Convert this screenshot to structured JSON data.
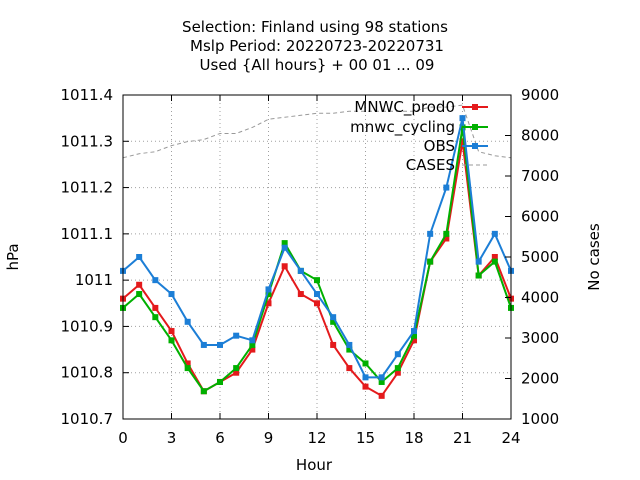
{
  "chart_data": {
    "type": "line",
    "title_lines": [
      "Selection: Finland using    98 stations",
      "Mslp   Period: 20220723-20220731",
      "Used {All hours} + 00 01 ... 09"
    ],
    "xlabel": "Hour",
    "ylabel": "hPa",
    "y2label": "No cases",
    "xlim": [
      0,
      24
    ],
    "ylim": [
      1010.7,
      1011.4
    ],
    "y2lim": [
      1000,
      9000
    ],
    "xticks": [
      "0",
      "3",
      "6",
      "9",
      "12",
      "15",
      "18",
      "21",
      "24"
    ],
    "yticks": [
      "1010.7",
      "1010.8",
      "1010.9",
      "1011",
      "1011.1",
      "1011.2",
      "1011.3",
      "1011.4"
    ],
    "y2ticks": [
      "1000",
      "2000",
      "3000",
      "4000",
      "5000",
      "6000",
      "7000",
      "8000",
      "9000"
    ],
    "grid": true,
    "legend_position": "top-right",
    "x": [
      0,
      1,
      2,
      3,
      4,
      5,
      6,
      7,
      8,
      9,
      10,
      11,
      12,
      13,
      14,
      15,
      16,
      17,
      18,
      19,
      20,
      21,
      22,
      23,
      24
    ],
    "series": [
      {
        "name": "MNWC_prod0",
        "color": "#e41a1c",
        "marker": "square",
        "values": [
          1010.96,
          1010.99,
          1010.94,
          1010.89,
          1010.82,
          1010.76,
          1010.78,
          1010.8,
          1010.85,
          1010.95,
          1011.03,
          1010.97,
          1010.95,
          1010.86,
          1010.81,
          1010.77,
          1010.75,
          1010.8,
          1010.87,
          1011.04,
          1011.09,
          1011.3,
          1011.01,
          1011.05,
          1010.96
        ]
      },
      {
        "name": "mnwc_cycling",
        "color": "#00b000",
        "marker": "square",
        "values": [
          1010.94,
          1010.97,
          1010.92,
          1010.87,
          1010.81,
          1010.76,
          1010.78,
          1010.81,
          1010.86,
          1010.97,
          1011.08,
          1011.02,
          1011.0,
          1010.91,
          1010.85,
          1010.82,
          1010.78,
          1010.81,
          1010.88,
          1011.04,
          1011.1,
          1011.33,
          1011.01,
          1011.04,
          1010.94
        ]
      },
      {
        "name": "OBS",
        "color": "#1c7ed6",
        "marker": "square",
        "values": [
          1011.02,
          1011.05,
          1011.0,
          1010.97,
          1010.91,
          1010.86,
          1010.86,
          1010.88,
          1010.87,
          1010.98,
          1011.07,
          1011.02,
          1010.97,
          1010.92,
          1010.86,
          1010.79,
          1010.79,
          1010.84,
          1010.89,
          1011.1,
          1011.2,
          1011.35,
          1011.04,
          1011.1,
          1011.02
        ]
      },
      {
        "name": "CASES",
        "color": "#999999",
        "dashed": true,
        "axis": "y2",
        "values": [
          7450,
          7550,
          7600,
          7750,
          7850,
          7900,
          8050,
          8050,
          8200,
          8400,
          8450,
          8500,
          8550,
          8550,
          8600,
          8600,
          8600,
          8600,
          8600,
          8700,
          8700,
          8750,
          7600,
          7500,
          7450
        ]
      }
    ]
  }
}
